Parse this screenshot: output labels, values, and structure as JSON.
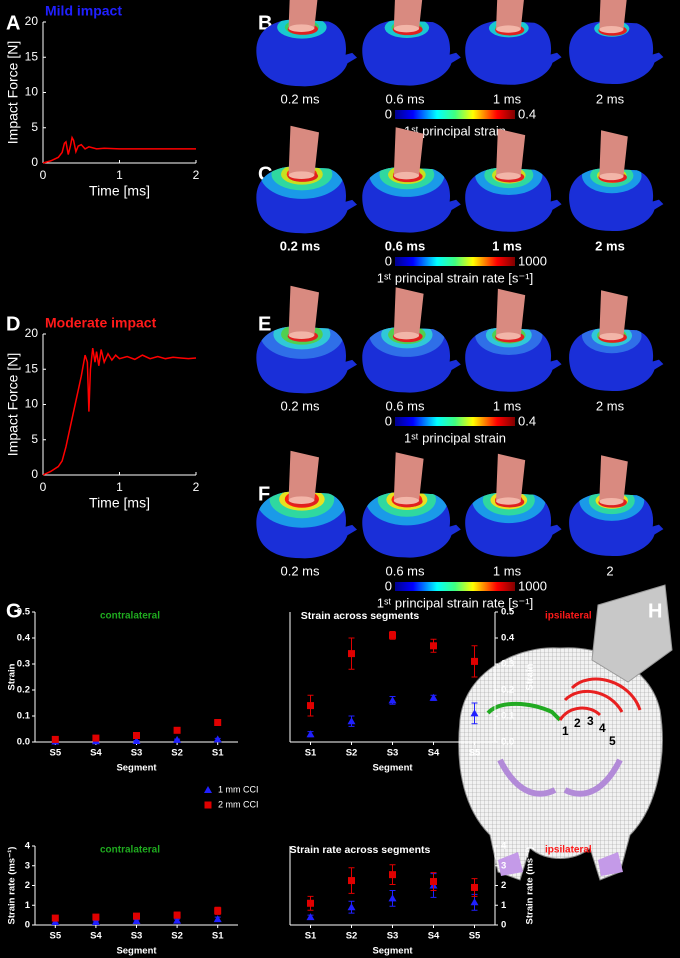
{
  "panel_letters": [
    "A",
    "B",
    "C",
    "D",
    "E",
    "F",
    "G",
    "H"
  ],
  "snapshots": [
    {
      "times": [
        "0.2 ms",
        "0.6 ms",
        "1 ms",
        "2 ms"
      ],
      "scale_min": 0,
      "scale_max": 0.4,
      "scale_label": "1ˢᵗ principal strain",
      "bold": false
    },
    {
      "times": [
        "0.2 ms",
        "0.6 ms",
        "1 ms",
        "2 ms"
      ],
      "scale_min": 0,
      "scale_max": 1000,
      "scale_label": "1ˢᵗ principal strain rate [s⁻¹]",
      "bold": true
    },
    {
      "times": [
        "0.2 ms",
        "0.6 ms",
        "1 ms",
        "2 ms"
      ],
      "scale_min": 0,
      "scale_max": 0.4,
      "scale_label": "1ˢᵗ principal strain",
      "bold": false
    },
    {
      "times": [
        "0.2 ms",
        "0.6 ms",
        "1 ms",
        "2"
      ],
      "scale_min": 0,
      "scale_max": 1000,
      "scale_label": "1ˢᵗ principal strain rate [s⁻¹]",
      "bold": false
    }
  ],
  "segment_map": {
    "labels": [
      "1",
      "2",
      "3",
      "4",
      "5"
    ]
  },
  "chart_data": [
    {
      "type": "line",
      "title": "Mild impact",
      "title_color": "#2020ff",
      "xlabel": "Time [ms]",
      "ylabel": "Impact Force [N]",
      "color": "#ff0000",
      "xlim": [
        0,
        2
      ],
      "ylim": [
        0,
        20
      ],
      "xticks": [
        0,
        1,
        2
      ],
      "yticks": [
        0,
        5,
        10,
        15,
        20
      ],
      "x": [
        0,
        0.1,
        0.2,
        0.25,
        0.28,
        0.3,
        0.33,
        0.36,
        0.38,
        0.4,
        0.43,
        0.46,
        0.5,
        0.55,
        0.6,
        0.7,
        0.8,
        1.0,
        1.2,
        1.5,
        1.8,
        2.0
      ],
      "values": [
        0,
        0.3,
        0.8,
        1.5,
        2.8,
        3.0,
        1.2,
        2.5,
        3.6,
        3.2,
        1.6,
        2.4,
        2.6,
        2.0,
        2.3,
        2.0,
        2.1,
        2.0,
        2.0,
        2.0,
        2.0,
        2.0
      ]
    },
    {
      "type": "line",
      "title": "Moderate impact",
      "title_color": "#ff1a1a",
      "xlabel": "Time [ms]",
      "ylabel": "Impact Force [N]",
      "color": "#ff0000",
      "xlim": [
        0,
        2
      ],
      "ylim": [
        0,
        20
      ],
      "xticks": [
        0,
        1,
        2
      ],
      "yticks": [
        0,
        5,
        10,
        15,
        20
      ],
      "x": [
        0,
        0.1,
        0.2,
        0.25,
        0.3,
        0.4,
        0.5,
        0.55,
        0.58,
        0.6,
        0.62,
        0.65,
        0.68,
        0.7,
        0.73,
        0.76,
        0.8,
        0.85,
        0.9,
        0.95,
        1.0,
        1.1,
        1.2,
        1.3,
        1.4,
        1.5,
        1.6,
        1.7,
        1.8,
        1.9,
        2.0
      ],
      "values": [
        0,
        0.5,
        1.2,
        2,
        4,
        9,
        14,
        17,
        16,
        9,
        15,
        18,
        16,
        17.5,
        15.5,
        17.8,
        16,
        17.2,
        16.3,
        17,
        16.5,
        16.8,
        16.4,
        17,
        16.5,
        16.8,
        16.5,
        16.7,
        16.6,
        16.5,
        16.6
      ]
    },
    {
      "type": "scatter",
      "title": "Strain across segments",
      "xlabel": "Segment",
      "ylabel": "Strain",
      "ylim": [
        0,
        0.5
      ],
      "yticks": [
        {
          "value": 0,
          "label": "0.0"
        },
        0.1,
        0.2,
        0.3,
        0.4,
        0.5
      ],
      "series": [
        {
          "name": "1 mm CCI",
          "color": "#2020ff",
          "marker": "triangle"
        },
        {
          "name": "2 mm CCI",
          "color": "#e00000",
          "marker": "square"
        }
      ],
      "panels": [
        {
          "label": "contralateral",
          "color": "#1faa1f",
          "categories": [
            "S5",
            "S4",
            "S3",
            "S2",
            "S1"
          ],
          "values": [
            [
              0.002,
              0.003,
              0.004,
              0.008,
              0.01
            ],
            [
              0.01,
              0.015,
              0.025,
              0.045,
              0.075
            ]
          ],
          "errors": [
            [
              0.002,
              0.002,
              0.002,
              0.003,
              0.004
            ],
            [
              0.003,
              0.004,
              0.005,
              0.006,
              0.008
            ]
          ]
        },
        {
          "label": "ipsilateral",
          "color": "#ff1a1a",
          "categories": [
            "S1",
            "S2",
            "S3",
            "S4",
            "S5"
          ],
          "values": [
            [
              0.03,
              0.08,
              0.16,
              0.17,
              0.11
            ],
            [
              0.14,
              0.34,
              0.41,
              0.37,
              0.31
            ]
          ],
          "errors": [
            [
              0.01,
              0.02,
              0.015,
              0.01,
              0.04
            ],
            [
              0.04,
              0.06,
              0.015,
              0.025,
              0.06
            ]
          ]
        }
      ]
    },
    {
      "type": "scatter",
      "title": "Strain rate across segments",
      "xlabel": "Segment",
      "ylabel": "Strain rate (ms⁻¹)",
      "ylim": [
        0,
        4
      ],
      "yticks": [
        0,
        1,
        2,
        3,
        4
      ],
      "series": [
        {
          "color": "#2020ff",
          "marker": "triangle"
        },
        {
          "color": "#e00000",
          "marker": "square"
        }
      ],
      "panels": [
        {
          "label": "contralateral",
          "color": "#1faa1f",
          "categories": [
            "S5",
            "S4",
            "S3",
            "S2",
            "S1"
          ],
          "values": [
            [
              0.15,
              0.15,
              0.2,
              0.22,
              0.3
            ],
            [
              0.35,
              0.4,
              0.45,
              0.5,
              0.72
            ]
          ],
          "errors": [
            [
              0.05,
              0.05,
              0.06,
              0.08,
              0.1
            ],
            [
              0.1,
              0.1,
              0.12,
              0.15,
              0.18
            ]
          ]
        },
        {
          "label": "ipsilateral",
          "color": "#ff1a1a",
          "categories": [
            "S1",
            "S2",
            "S3",
            "S4",
            "S5"
          ],
          "values": [
            [
              0.4,
              0.9,
              1.35,
              2.0,
              1.15
            ],
            [
              1.1,
              2.25,
              2.55,
              2.2,
              1.9
            ]
          ],
          "errors": [
            [
              0.1,
              0.3,
              0.4,
              0.6,
              0.4
            ],
            [
              0.35,
              0.65,
              0.5,
              0.45,
              0.45
            ]
          ]
        }
      ]
    }
  ]
}
